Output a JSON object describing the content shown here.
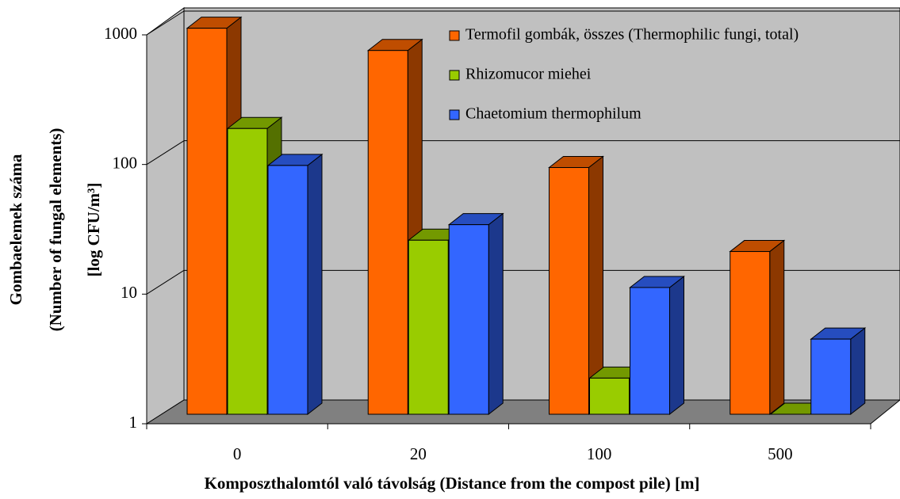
{
  "chart_data": {
    "type": "bar3d",
    "y_label": [
      "Gombaelemek száma",
      "(Number of fungal elements)",
      "[log CFU/m³]"
    ],
    "x_label": "Komposzthalomtól való távolság (Distance from the compost pile) [m]",
    "categories": [
      "0",
      "20",
      "100",
      "500"
    ],
    "series": [
      {
        "name": "Termofil gombák, összes (Thermophilic fungi, total)",
        "color": "#ff6600",
        "values": [
          950,
          640,
          80,
          18
        ]
      },
      {
        "name": "Rhizomucor miehei",
        "color": "#99cc00",
        "values": [
          160,
          22,
          1.9,
          1
        ]
      },
      {
        "name": "Chaetomium thermophilum",
        "color": "#3366ff",
        "values": [
          83,
          29,
          9.5,
          3.8
        ]
      }
    ],
    "ylim": [
      1,
      1000
    ],
    "yticks": [
      1,
      10,
      100,
      1000
    ],
    "log_scale": true,
    "grid": true,
    "legend": "top-right"
  }
}
